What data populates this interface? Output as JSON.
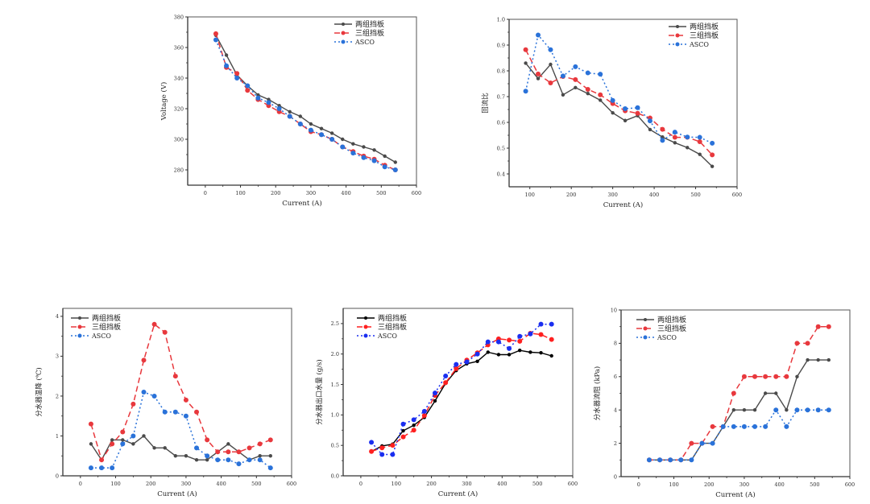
{
  "chart_data": [
    {
      "id": "voltage",
      "type": "line",
      "xlabel": "Current (A)",
      "ylabel": "Voltage (V)",
      "xlim": [
        -50,
        600
      ],
      "ylim": [
        270,
        380
      ],
      "xticks": [
        0,
        100,
        200,
        300,
        400,
        500,
        600
      ],
      "yticks": [
        280,
        300,
        320,
        340,
        360,
        380
      ],
      "legend_position": "top-right",
      "grid": false,
      "series": [
        {
          "name": "两组挡板",
          "color": "#4a4a4a",
          "style": "solid",
          "x": [
            30,
            60,
            90,
            120,
            150,
            180,
            210,
            240,
            270,
            300,
            330,
            360,
            390,
            420,
            450,
            480,
            510,
            540
          ],
          "y": [
            368,
            355,
            342,
            335,
            329,
            326,
            322,
            318,
            315,
            310,
            307,
            304,
            300,
            297,
            295,
            293,
            289,
            285
          ]
        },
        {
          "name": "三组挡板",
          "color": "#e8383d",
          "style": "dashed",
          "x": [
            30,
            60,
            90,
            120,
            150,
            180,
            210,
            240,
            270,
            300,
            330,
            360,
            390,
            420,
            450,
            480,
            510,
            540
          ],
          "y": [
            369,
            347,
            343,
            332,
            326,
            322,
            318,
            315,
            310,
            305,
            303,
            300,
            295,
            292,
            289,
            287,
            283,
            280
          ]
        },
        {
          "name": "ASCO",
          "color": "#2a72d9",
          "style": "dotted",
          "x": [
            30,
            60,
            90,
            120,
            150,
            180,
            210,
            240,
            270,
            300,
            330,
            360,
            390,
            420,
            450,
            480,
            510,
            540
          ],
          "y": [
            365,
            348,
            340,
            335,
            327,
            324,
            320,
            315,
            310,
            306,
            303,
            300,
            295,
            291,
            288,
            286,
            282,
            280
          ]
        }
      ]
    },
    {
      "id": "reflux-ratio",
      "type": "line",
      "xlabel": "Current (A)",
      "ylabel": "回流比",
      "xlim": [
        50,
        600
      ],
      "ylim": [
        0.35,
        1.0
      ],
      "xticks": [
        100,
        200,
        300,
        400,
        500,
        600
      ],
      "yticks": [
        0.4,
        0.5,
        0.6,
        0.7,
        0.8,
        0.9,
        1.0
      ],
      "legend_position": "top-right",
      "grid": false,
      "series": [
        {
          "name": "两组挡板",
          "color": "#4a4a4a",
          "style": "solid",
          "x": [
            90,
            120,
            150,
            180,
            210,
            240,
            270,
            300,
            330,
            360,
            390,
            420,
            450,
            480,
            510,
            540
          ],
          "y": [
            0.83,
            0.77,
            0.825,
            0.707,
            0.735,
            0.712,
            0.686,
            0.637,
            0.607,
            0.626,
            0.572,
            0.543,
            0.521,
            0.502,
            0.476,
            0.429
          ]
        },
        {
          "name": "三组挡板",
          "color": "#e8383d",
          "style": "dashed",
          "x": [
            90,
            120,
            150,
            180,
            210,
            240,
            270,
            300,
            330,
            360,
            390,
            420,
            450,
            480,
            510,
            540
          ],
          "y": [
            0.882,
            0.788,
            0.753,
            0.778,
            0.766,
            0.728,
            0.707,
            0.673,
            0.645,
            0.635,
            0.617,
            0.573,
            0.542,
            0.542,
            0.525,
            0.474
          ]
        },
        {
          "name": "ASCO",
          "color": "#2a72d9",
          "style": "dotted",
          "x": [
            90,
            120,
            150,
            180,
            210,
            240,
            270,
            300,
            330,
            360,
            390,
            420,
            450,
            480,
            510,
            540
          ],
          "y": [
            0.721,
            0.939,
            0.882,
            0.78,
            0.816,
            0.792,
            0.787,
            0.685,
            0.653,
            0.657,
            0.606,
            0.53,
            0.562,
            0.543,
            0.542,
            0.519
          ]
        }
      ]
    },
    {
      "id": "temp-drop",
      "type": "line",
      "xlabel": "Current (A)",
      "ylabel": "分水器温降 (℃)",
      "xlim": [
        -50,
        600
      ],
      "ylim": [
        0,
        4.2
      ],
      "xticks": [
        0,
        100,
        200,
        300,
        400,
        500,
        600
      ],
      "yticks": [
        0,
        1,
        2,
        3,
        4
      ],
      "legend_position": "top-left",
      "grid": false,
      "series": [
        {
          "name": "两组挡板",
          "color": "#4a4a4a",
          "style": "solid",
          "x": [
            30,
            60,
            90,
            120,
            150,
            180,
            210,
            240,
            270,
            300,
            330,
            360,
            390,
            420,
            450,
            480,
            510,
            540
          ],
          "y": [
            0.8,
            0.4,
            0.9,
            0.9,
            0.8,
            1.0,
            0.7,
            0.7,
            0.5,
            0.5,
            0.4,
            0.4,
            0.6,
            0.8,
            0.6,
            0.4,
            0.5,
            0.5
          ]
        },
        {
          "name": "三组挡板",
          "color": "#e8383d",
          "style": "dashed",
          "x": [
            30,
            60,
            90,
            120,
            150,
            180,
            210,
            240,
            270,
            300,
            330,
            360,
            390,
            420,
            450,
            480,
            510,
            540
          ],
          "y": [
            1.3,
            0.4,
            0.8,
            1.1,
            1.8,
            2.9,
            3.8,
            3.6,
            2.5,
            1.9,
            1.6,
            0.9,
            0.6,
            0.6,
            0.6,
            0.7,
            0.8,
            0.9
          ]
        },
        {
          "name": "ASCO",
          "color": "#2a72d9",
          "style": "dotted",
          "x": [
            30,
            60,
            90,
            120,
            150,
            180,
            210,
            240,
            270,
            300,
            330,
            360,
            390,
            420,
            450,
            480,
            510,
            540
          ],
          "y": [
            0.2,
            0.2,
            0.2,
            0.8,
            1.0,
            2.1,
            2.0,
            1.6,
            1.6,
            1.5,
            0.7,
            0.5,
            0.4,
            0.4,
            0.3,
            0.4,
            0.4,
            0.2
          ]
        }
      ]
    },
    {
      "id": "outlet-water",
      "type": "line",
      "xlabel": "Current (A)",
      "ylabel": "分水器出口水量 (g/s)",
      "xlim": [
        -50,
        600
      ],
      "ylim": [
        0,
        2.75
      ],
      "xticks": [
        0,
        100,
        200,
        300,
        400,
        500,
        600
      ],
      "yticks": [
        0.0,
        0.5,
        1.0,
        1.5,
        2.0,
        2.5
      ],
      "legend_position": "top-left",
      "grid": false,
      "series": [
        {
          "name": "两组挡板",
          "color": "#000000",
          "style": "solid",
          "x": [
            30,
            60,
            90,
            120,
            150,
            180,
            210,
            240,
            270,
            300,
            330,
            360,
            390,
            420,
            450,
            480,
            510,
            540
          ],
          "y": [
            0.4,
            0.49,
            0.52,
            0.74,
            0.83,
            0.96,
            1.23,
            1.52,
            1.73,
            1.84,
            1.88,
            2.03,
            1.99,
            1.99,
            2.06,
            2.03,
            2.02,
            1.97
          ]
        },
        {
          "name": "三组挡板",
          "color": "#ff2020",
          "style": "dashed",
          "x": [
            30,
            60,
            90,
            120,
            150,
            180,
            210,
            240,
            270,
            300,
            330,
            360,
            390,
            420,
            450,
            480,
            510,
            540
          ],
          "y": [
            0.4,
            0.46,
            0.5,
            0.64,
            0.75,
            0.99,
            1.32,
            1.53,
            1.76,
            1.9,
            2.02,
            2.15,
            2.25,
            2.23,
            2.21,
            2.34,
            2.32,
            2.24
          ]
        },
        {
          "name": "ASCO",
          "color": "#1a2ef0",
          "style": "dotted",
          "x": [
            30,
            60,
            90,
            120,
            150,
            180,
            210,
            240,
            270,
            300,
            330,
            360,
            390,
            420,
            450,
            480,
            510,
            540
          ],
          "y": [
            0.55,
            0.35,
            0.35,
            0.85,
            0.92,
            1.06,
            1.36,
            1.64,
            1.83,
            1.87,
            2.0,
            2.2,
            2.2,
            2.09,
            2.29,
            2.33,
            2.49,
            2.49
          ]
        }
      ]
    },
    {
      "id": "flow-resistance",
      "type": "line",
      "xlabel": "Current (A)",
      "ylabel": "分水器流阻 (kPa)",
      "xlim": [
        -50,
        600
      ],
      "ylim": [
        0,
        10
      ],
      "xticks": [
        0,
        100,
        200,
        300,
        400,
        500,
        600
      ],
      "yticks": [
        0,
        2,
        4,
        6,
        8,
        10
      ],
      "legend_position": "top-left",
      "grid": false,
      "series": [
        {
          "name": "两组挡板",
          "color": "#4a4a4a",
          "style": "solid",
          "x": [
            30,
            60,
            90,
            120,
            150,
            180,
            210,
            240,
            270,
            300,
            330,
            360,
            390,
            420,
            450,
            480,
            510,
            540
          ],
          "y": [
            1,
            1,
            1,
            1,
            1,
            2,
            2,
            3,
            4,
            4,
            4,
            5,
            5,
            4,
            6,
            7,
            7,
            7
          ]
        },
        {
          "name": "三组挡板",
          "color": "#e8383d",
          "style": "dashed",
          "x": [
            30,
            60,
            90,
            120,
            150,
            180,
            210,
            240,
            270,
            300,
            330,
            360,
            390,
            420,
            450,
            480,
            510,
            540
          ],
          "y": [
            1,
            1,
            1,
            1,
            2,
            2,
            3,
            3,
            5,
            6,
            6,
            6,
            6,
            6,
            8,
            8,
            9,
            9
          ]
        },
        {
          "name": "ASCO",
          "color": "#2a72d9",
          "style": "dotted",
          "x": [
            30,
            60,
            90,
            120,
            150,
            180,
            210,
            240,
            270,
            300,
            330,
            360,
            390,
            420,
            450,
            480,
            510,
            540
          ],
          "y": [
            1,
            1,
            1,
            1,
            1,
            2,
            2,
            3,
            3,
            3,
            3,
            3,
            4,
            3,
            4,
            4,
            4,
            4
          ]
        }
      ]
    }
  ]
}
